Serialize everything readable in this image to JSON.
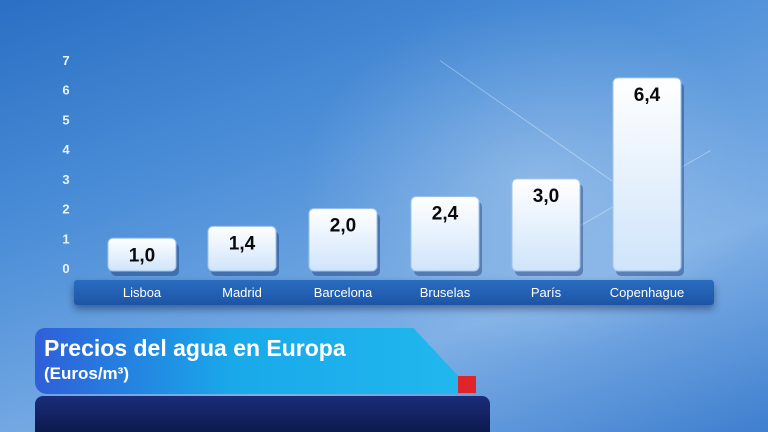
{
  "chart_data": {
    "type": "bar",
    "title": "Precios del agua en Europa",
    "subtitle": "(Euros/m³)",
    "categories": [
      "Lisboa",
      "Madrid",
      "Barcelona",
      "Bruselas",
      "París",
      "Copenhague"
    ],
    "values": [
      1.0,
      1.4,
      2.0,
      2.4,
      3.0,
      6.4
    ],
    "value_labels": [
      "1,0",
      "1,4",
      "2,0",
      "2,4",
      "3,0",
      "6,4"
    ],
    "yticks": [
      "0",
      "1",
      "2",
      "3",
      "4",
      "5",
      "6",
      "7"
    ],
    "ylim": [
      0,
      7
    ],
    "grid": false,
    "colors": {
      "bar": "#eef6ff",
      "axis_band": "#1d55a6",
      "title_bg": "#19a9ea",
      "accent": "#e0252a"
    }
  }
}
